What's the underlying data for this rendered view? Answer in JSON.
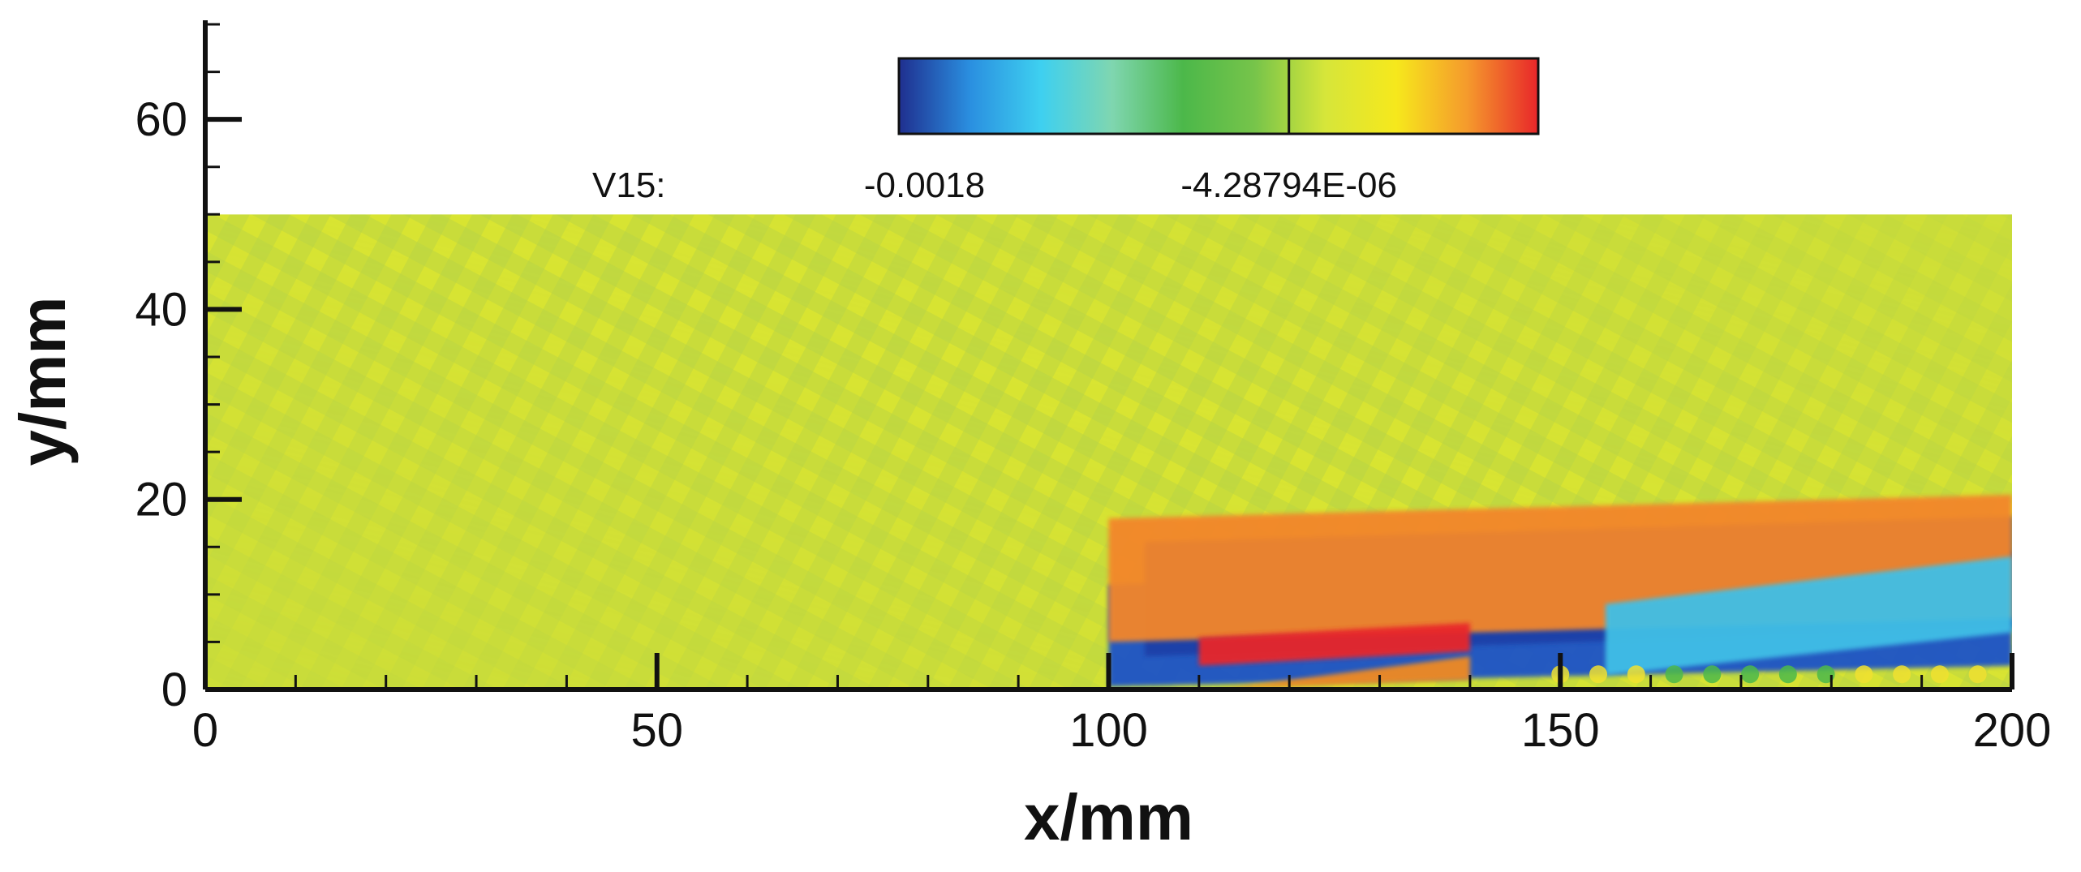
{
  "chart_data": {
    "type": "heatmap",
    "title": "",
    "xlabel": "x/mm",
    "ylabel": "y/mm",
    "xlim": [
      0,
      200
    ],
    "ylim": [
      0,
      70
    ],
    "plot_domain": {
      "x": [
        0,
        200
      ],
      "y": [
        0,
        50
      ]
    },
    "x_ticks": [
      0,
      50,
      100,
      150,
      200
    ],
    "x_minor_step": 10,
    "y_ticks": [
      0,
      20,
      40,
      60
    ],
    "y_minor_step": 5,
    "grid": false,
    "colorbar": {
      "variable": "V15:",
      "label_values": [
        "-0.0018",
        "-4.28794E-06"
      ],
      "colors": [
        "#1f2f8f",
        "#2a8fe0",
        "#3ed0f0",
        "#7fd6b0",
        "#4cb84a",
        "#76c44a",
        "#d6e63a",
        "#f6e81c",
        "#f59a2c",
        "#e8262a"
      ],
      "marker_fraction": 0.61,
      "placement": "top-center"
    },
    "field": {
      "background": "#c9dc3a",
      "features": [
        {
          "name": "lower-shear-band",
          "color": "#1e52c8",
          "x": [
            100,
            200
          ],
          "y_start": [
            0.3,
            2.5
          ],
          "y_end": [
            11,
            14.5
          ]
        },
        {
          "name": "upper-shear-band",
          "color": "#1f3fa8",
          "x": [
            104,
            200
          ],
          "y_start": [
            3.5,
            6.5
          ],
          "y_end": [
            15.5,
            18.2
          ]
        },
        {
          "name": "orange-shock-front",
          "color": "#f3862c",
          "x": [
            100,
            200
          ],
          "y_start": [
            5,
            7.5
          ],
          "y_end": [
            18,
            20.5
          ]
        },
        {
          "name": "red-core",
          "color": "#e8262a",
          "x": [
            110,
            140
          ],
          "y_start": [
            2.5,
            4
          ],
          "y_end": [
            5.5,
            7
          ]
        },
        {
          "name": "near-wall-orange-patch",
          "color": "#f08a22",
          "x": [
            112,
            140
          ],
          "y_start": [
            0,
            1
          ],
          "y_end": [
            0,
            3.5
          ]
        },
        {
          "name": "cyan-wake",
          "color": "#3fbfe6",
          "x": [
            155,
            200
          ],
          "y_start": [
            1.5,
            6
          ],
          "y_end": [
            9,
            14
          ]
        }
      ]
    }
  }
}
